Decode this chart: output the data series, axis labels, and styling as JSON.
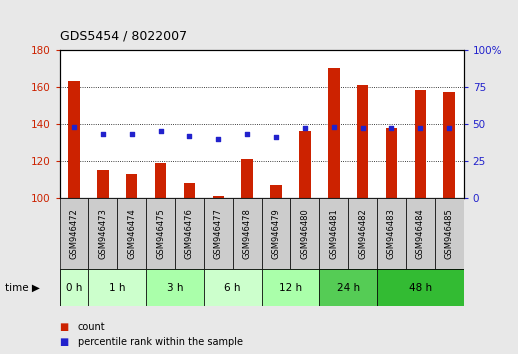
{
  "title": "GDS5454 / 8022007",
  "samples": [
    "GSM946472",
    "GSM946473",
    "GSM946474",
    "GSM946475",
    "GSM946476",
    "GSM946477",
    "GSM946478",
    "GSM946479",
    "GSM946480",
    "GSM946481",
    "GSM946482",
    "GSM946483",
    "GSM946484",
    "GSM946485"
  ],
  "count_values": [
    163,
    115,
    113,
    119,
    108,
    101,
    121,
    107,
    136,
    170,
    161,
    138,
    158,
    157
  ],
  "percentile_values": [
    48,
    43,
    43,
    45,
    42,
    40,
    43,
    41,
    47,
    48,
    47,
    47,
    47,
    47
  ],
  "time_groups": [
    {
      "label": "0 h",
      "indices": [
        0
      ],
      "color": "#ccffcc"
    },
    {
      "label": "1 h",
      "indices": [
        1,
        2
      ],
      "color": "#ccffcc"
    },
    {
      "label": "3 h",
      "indices": [
        3,
        4
      ],
      "color": "#aaffaa"
    },
    {
      "label": "6 h",
      "indices": [
        5,
        6
      ],
      "color": "#ccffcc"
    },
    {
      "label": "12 h",
      "indices": [
        7,
        8
      ],
      "color": "#aaffaa"
    },
    {
      "label": "24 h",
      "indices": [
        9,
        10
      ],
      "color": "#55cc55"
    },
    {
      "label": "48 h",
      "indices": [
        11,
        12,
        13
      ],
      "color": "#33bb33"
    }
  ],
  "ylim_left": [
    100,
    180
  ],
  "ylim_right": [
    0,
    100
  ],
  "yticks_left": [
    100,
    120,
    140,
    160,
    180
  ],
  "yticks_right": [
    0,
    25,
    50,
    75,
    100
  ],
  "bar_color": "#cc2200",
  "dot_color": "#2222cc",
  "bg_color": "#e8e8e8",
  "plot_bg": "#ffffff",
  "sample_bg_color": "#cccccc",
  "grid_linestyle": "dotted",
  "bar_width": 0.4
}
